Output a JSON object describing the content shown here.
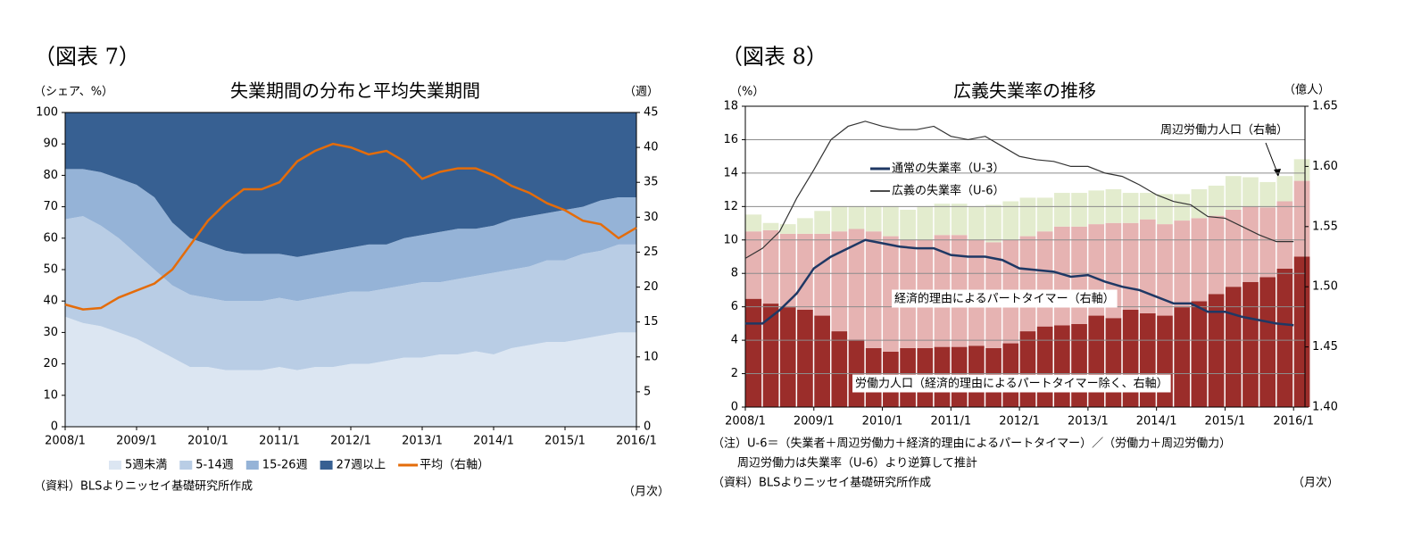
{
  "chart_data": [
    {
      "type": "combo",
      "figure_label": "（図表 7）",
      "title": "失業期間の分布と平均失業期間",
      "ylabel": "（シェア、%）",
      "y2label": "（週）",
      "x": [
        "2008/1",
        "2008/4",
        "2008/7",
        "2008/10",
        "2009/1",
        "2009/4",
        "2009/7",
        "2009/10",
        "2010/1",
        "2010/4",
        "2010/7",
        "2010/10",
        "2011/1",
        "2011/4",
        "2011/7",
        "2011/10",
        "2012/1",
        "2012/4",
        "2012/7",
        "2012/10",
        "2013/1",
        "2013/4",
        "2013/7",
        "2013/10",
        "2014/1",
        "2014/4",
        "2014/7",
        "2014/10",
        "2015/1",
        "2015/4",
        "2015/7",
        "2015/10",
        "2016/1"
      ],
      "xlim": [
        "2008/1",
        "2016/1"
      ],
      "xticks": [
        "2008/1",
        "2009/1",
        "2010/1",
        "2011/1",
        "2012/1",
        "2013/1",
        "2014/1",
        "2015/1",
        "2016/1"
      ],
      "ylim": [
        0,
        100
      ],
      "yticks": [
        0,
        10,
        20,
        30,
        40,
        50,
        60,
        70,
        80,
        90,
        100
      ],
      "y2lim": [
        0,
        45
      ],
      "y2ticks": [
        0,
        5,
        10,
        15,
        20,
        25,
        30,
        35,
        40,
        45
      ],
      "grid": false,
      "legend": "bottom",
      "series": [
        {
          "name": "5週未満",
          "type": "area",
          "color": "#dce6f2",
          "values": [
            35,
            33,
            32,
            30,
            28,
            25,
            22,
            19,
            19,
            18,
            18,
            18,
            19,
            18,
            19,
            19,
            20,
            20,
            21,
            22,
            22,
            23,
            23,
            24,
            23,
            25,
            26,
            27,
            27,
            28,
            29,
            30,
            30
          ]
        },
        {
          "name": "5-14週",
          "type": "area",
          "color": "#b9cde5",
          "values": [
            31,
            34,
            32,
            30,
            27,
            25,
            23,
            23,
            22,
            22,
            22,
            22,
            22,
            22,
            22,
            23,
            23,
            23,
            23,
            23,
            24,
            23,
            24,
            24,
            26,
            25,
            25,
            26,
            26,
            27,
            27,
            28,
            28
          ]
        },
        {
          "name": "15-26週",
          "type": "area",
          "color": "#95b3d7",
          "values": [
            16,
            15,
            17,
            19,
            22,
            23,
            20,
            18,
            17,
            16,
            15,
            15,
            14,
            14,
            14,
            14,
            14,
            15,
            14,
            15,
            15,
            16,
            16,
            15,
            15,
            16,
            16,
            15,
            16,
            15,
            16,
            15,
            15
          ]
        },
        {
          "name": "27週以上",
          "type": "area",
          "color": "#376092",
          "values": [
            18,
            18,
            19,
            21,
            23,
            27,
            35,
            40,
            42,
            44,
            45,
            45,
            45,
            46,
            45,
            44,
            43,
            42,
            42,
            40,
            39,
            38,
            37,
            37,
            36,
            34,
            33,
            32,
            31,
            30,
            28,
            27,
            27
          ]
        },
        {
          "name": "平均（右軸）",
          "type": "line",
          "axis": "y2",
          "color": "#e46c0a",
          "width": 2.5,
          "values": [
            17.5,
            16.8,
            17,
            18.5,
            19.5,
            20.5,
            22.5,
            26,
            29.5,
            32,
            34,
            34,
            35,
            38,
            39.5,
            40.5,
            40,
            39,
            39.5,
            38,
            35.5,
            36.5,
            37,
            37,
            36,
            34.5,
            33.5,
            32,
            31,
            29.5,
            29,
            27,
            28.5
          ]
        }
      ],
      "notes": [
        "（資料）BLSよりニッセイ基礎研究所作成"
      ],
      "x_unit": "（月次）"
    },
    {
      "type": "combo",
      "figure_label": "（図表 8）",
      "title": "広義失業率の推移",
      "ylabel": "（%）",
      "y2label": "（億人）",
      "x": [
        "2008/1",
        "2008/4",
        "2008/7",
        "2008/10",
        "2009/1",
        "2009/4",
        "2009/7",
        "2009/10",
        "2010/1",
        "2010/4",
        "2010/7",
        "2010/10",
        "2011/1",
        "2011/4",
        "2011/7",
        "2011/10",
        "2012/1",
        "2012/4",
        "2012/7",
        "2012/10",
        "2013/1",
        "2013/4",
        "2013/7",
        "2013/10",
        "2014/1",
        "2014/4",
        "2014/7",
        "2014/10",
        "2015/1",
        "2015/4",
        "2015/7",
        "2015/10",
        "2016/1"
      ],
      "xlim": [
        "2008/1",
        "2016/3"
      ],
      "xticks": [
        "2008/1",
        "2009/1",
        "2010/1",
        "2011/1",
        "2012/1",
        "2013/1",
        "2014/1",
        "2015/1",
        "2016/1"
      ],
      "ylim": [
        0,
        18
      ],
      "yticks": [
        0,
        2,
        4,
        6,
        8,
        10,
        12,
        14,
        16,
        18
      ],
      "y2lim": [
        1.4,
        1.65
      ],
      "y2ticks": [
        {
          "value": 1.4,
          "label": "1.40"
        },
        1.45,
        {
          "value": 1.5,
          "label": "1.50"
        },
        1.55,
        {
          "value": 1.6,
          "label": "1.60"
        },
        1.65
      ],
      "grid": true,
      "legend": "upper left",
      "series": [
        {
          "name": "労働力人口（経済的理由によるパートタイマー除く、右軸）",
          "type": "bar",
          "axis": "y2",
          "color": "#9b2d2a",
          "values": [
            1.49,
            1.486,
            1.483,
            1.481,
            1.476,
            1.463,
            1.456,
            1.449,
            1.446,
            1.449,
            1.449,
            1.45,
            1.45,
            1.451,
            1.449,
            1.453,
            1.463,
            1.467,
            1.468,
            1.469,
            1.476,
            1.474,
            1.481,
            1.478,
            1.476,
            1.483,
            1.488,
            1.494,
            1.5,
            1.504,
            1.508,
            1.515,
            1.525
          ]
        },
        {
          "name": "経済的理由によるパートタイマー（右軸）",
          "type": "bar",
          "axis": "y2",
          "color": "#e6b3b2",
          "values": [
            0.056,
            0.061,
            0.061,
            0.063,
            0.068,
            0.083,
            0.092,
            0.097,
            0.096,
            0.09,
            0.09,
            0.093,
            0.093,
            0.088,
            0.088,
            0.086,
            0.079,
            0.079,
            0.082,
            0.081,
            0.076,
            0.079,
            0.072,
            0.078,
            0.076,
            0.072,
            0.069,
            0.065,
            0.064,
            0.063,
            0.058,
            0.056,
            0.063
          ]
        },
        {
          "name": "周辺労働力人口（右軸）",
          "type": "bar",
          "axis": "y2",
          "color": "#e3ecce",
          "values": [
            0.014,
            0.006,
            0.008,
            0.013,
            0.019,
            0.021,
            0.019,
            0.021,
            0.025,
            0.025,
            0.028,
            0.026,
            0.026,
            0.028,
            0.031,
            0.032,
            0.032,
            0.028,
            0.028,
            0.028,
            0.028,
            0.028,
            0.025,
            0.022,
            0.025,
            0.022,
            0.024,
            0.025,
            0.028,
            0.024,
            0.021,
            0.021,
            0.018
          ]
        },
        {
          "name": "通常の失業率（U-3）",
          "type": "line",
          "color": "#1f3864",
          "width": 2.5,
          "values": [
            5.0,
            5.0,
            5.8,
            6.8,
            8.3,
            9.0,
            9.5,
            10.0,
            9.8,
            9.6,
            9.5,
            9.5,
            9.1,
            9.0,
            9.0,
            8.8,
            8.3,
            8.2,
            8.1,
            7.8,
            7.9,
            7.5,
            7.2,
            7.0,
            6.6,
            6.2,
            6.2,
            5.7,
            5.7,
            5.4,
            5.2,
            5.0,
            4.9
          ]
        },
        {
          "name": "広義の失業率（U-6）",
          "type": "line",
          "color": "#333333",
          "width": 1.2,
          "values": [
            8.9,
            9.5,
            10.5,
            12.5,
            14.2,
            16.0,
            16.8,
            17.1,
            16.8,
            16.6,
            16.6,
            16.8,
            16.2,
            16.0,
            16.2,
            15.6,
            15.0,
            14.8,
            14.7,
            14.4,
            14.4,
            14.0,
            13.8,
            13.3,
            12.7,
            12.3,
            12.1,
            11.4,
            11.3,
            10.8,
            10.3,
            9.9,
            9.9
          ]
        }
      ],
      "notes": [
        "（注）U-6＝（失業者＋周辺労働力＋経済的理由によるパートタイマー）／（労働力＋周辺労働力）",
        "周辺労働力は失業率（U-6）より逆算して推計",
        "（資料）BLSよりニッセイ基礎研究所作成"
      ],
      "x_unit": "（月次）"
    }
  ]
}
